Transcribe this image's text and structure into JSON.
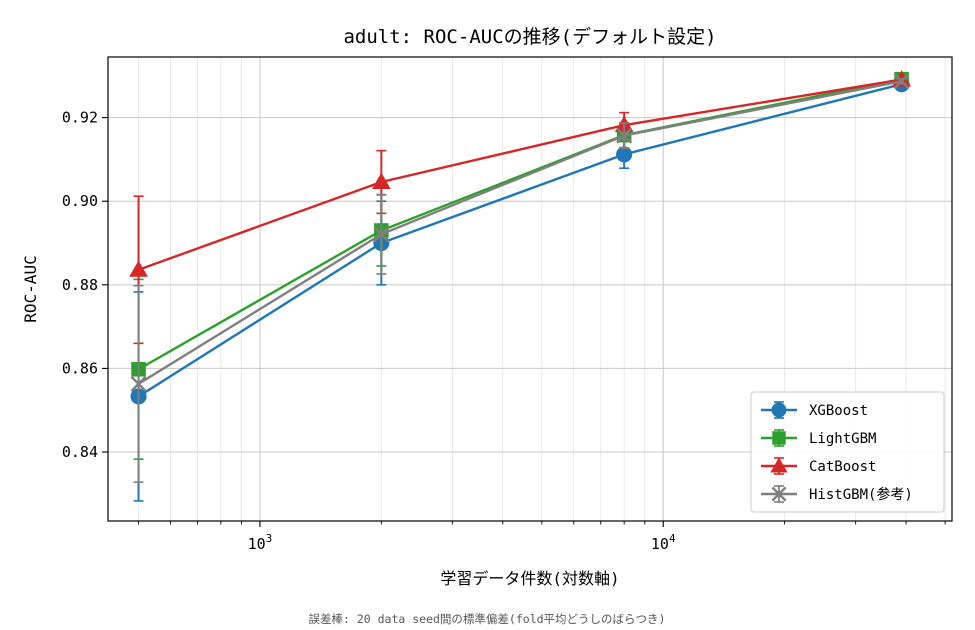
{
  "chart_data": {
    "type": "line",
    "title": "adult: ROC-AUCの推移(デフォルト設定)",
    "xlabel": "学習データ件数(対数軸)",
    "ylabel": "ROC-AUC",
    "x_scale": "log",
    "xlim": [
      420,
      52000
    ],
    "ylim": [
      0.8235,
      0.9345
    ],
    "y_ticks": [
      0.84,
      0.86,
      0.88,
      0.9,
      0.92
    ],
    "y_tick_labels": [
      "0.84",
      "0.86",
      "0.88",
      "0.90",
      "0.92"
    ],
    "x_major_ticks": [
      1000,
      10000
    ],
    "x_tick_labels": [
      {
        "base": "10",
        "exp": "3"
      },
      {
        "base": "10",
        "exp": "4"
      }
    ],
    "grid": true,
    "legend_position": "bottom-right",
    "x": [
      500,
      2000,
      8000,
      39000
    ],
    "series": [
      {
        "name": "XGBoost",
        "marker": "circle",
        "color": "#1f77b4",
        "values": [
          0.8533,
          0.89,
          0.9112,
          0.928
        ],
        "errors": [
          0.025,
          0.01,
          0.0033,
          0.0007
        ]
      },
      {
        "name": "LightGBM",
        "marker": "square",
        "color": "#2ca02c",
        "values": [
          0.8598,
          0.893,
          0.9158,
          0.9292
        ],
        "errors": [
          0.0215,
          0.0085,
          0.003,
          0.0006
        ]
      },
      {
        "name": "CatBoost",
        "marker": "triangle",
        "color": "#d62728",
        "values": [
          0.8836,
          0.9046,
          0.9182,
          0.9291
        ],
        "errors": [
          0.0176,
          0.0075,
          0.003,
          0.0006
        ]
      },
      {
        "name": "HistGBM(参考)",
        "marker": "x",
        "color": "#7f7f7f",
        "values": [
          0.8563,
          0.8921,
          0.9157,
          0.9287
        ],
        "errors": [
          0.0235,
          0.0095,
          0.003,
          0.0006
        ]
      }
    ]
  },
  "footnote": "誤差棒: 20 data seed間の標準偏差(fold平均どうしのばらつき)"
}
